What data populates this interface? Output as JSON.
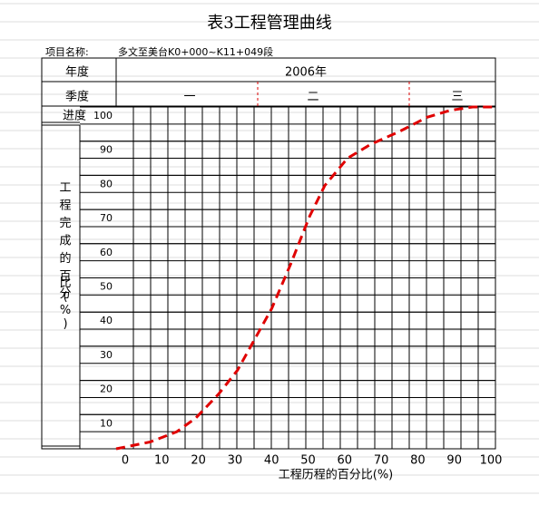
{
  "chart_data": {
    "type": "line",
    "title": "表3工程管理曲线",
    "project_label": "项目名称:",
    "project_name": "多文至美台K0+000~K11+049段",
    "year_label": "年度",
    "year": "2006年",
    "quarter_label": "季度",
    "quarters": [
      "一",
      "二",
      "三"
    ],
    "progress_label": "进度",
    "y_label": "工程完成的百分比(%)",
    "x_label": "工程历程的百分比(%)",
    "x": [
      0,
      9,
      16,
      21,
      27,
      32,
      36,
      41,
      46,
      51,
      55,
      61,
      67,
      75,
      82,
      88,
      94,
      100
    ],
    "values": [
      0,
      2,
      5,
      9,
      16,
      23,
      31,
      41,
      54,
      68,
      77,
      85,
      89,
      93,
      97,
      99,
      100,
      100
    ],
    "color": "#e00000",
    "dashed": true,
    "xlim": [
      0,
      100
    ],
    "ylim": [
      0,
      100
    ],
    "xticks": [
      0,
      10,
      20,
      30,
      40,
      50,
      60,
      70,
      80,
      90,
      100
    ],
    "yticks": [
      10,
      20,
      30,
      40,
      50,
      60,
      70,
      80,
      90,
      100
    ],
    "grid": true
  }
}
